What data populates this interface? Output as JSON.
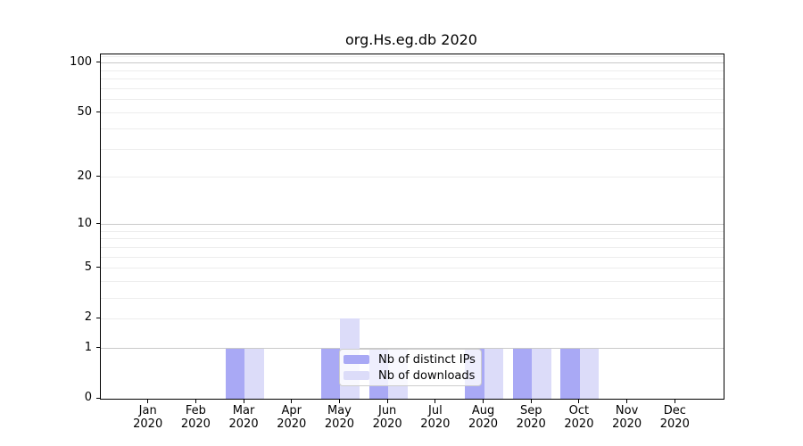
{
  "title": "org.Hs.eg.db 2020",
  "chart_data": {
    "type": "bar",
    "title": "org.Hs.eg.db 2020",
    "categories": [
      "Jan",
      "Feb",
      "Mar",
      "Apr",
      "May",
      "Jun",
      "Jul",
      "Aug",
      "Sep",
      "Oct",
      "Nov",
      "Dec"
    ],
    "category_year": "2020",
    "series": [
      {
        "name": "Nb of distinct IPs",
        "color": "#a9a9f5",
        "values": [
          0,
          0,
          1,
          0,
          1,
          1,
          0,
          1,
          1,
          1,
          0,
          0
        ]
      },
      {
        "name": "Nb of downloads",
        "color": "#dcdcf9",
        "values": [
          0,
          0,
          1,
          0,
          2,
          1,
          0,
          1,
          1,
          1,
          0,
          0
        ]
      }
    ],
    "y_axis": {
      "scale": "log1p",
      "tick_values": [
        0,
        1,
        2,
        5,
        10,
        20,
        50,
        100
      ],
      "major_gridlines": [
        1,
        10,
        100
      ],
      "minor_gridlines": [
        2,
        3,
        4,
        5,
        6,
        7,
        8,
        9,
        20,
        30,
        40,
        50,
        60,
        70,
        80,
        90,
        110
      ],
      "range_max": 113
    },
    "x_axis": {
      "label_line2": "2020"
    },
    "legend": {
      "position": "lower center",
      "entries": [
        "Nb of distinct IPs",
        "Nb of downloads"
      ]
    },
    "grid": true,
    "colors": {
      "distinct_ips": "#a9a9f5",
      "downloads": "#dcdcf9",
      "major_grid": "#c9c9c9",
      "minor_grid": "#ededed",
      "spine": "#000000"
    }
  }
}
